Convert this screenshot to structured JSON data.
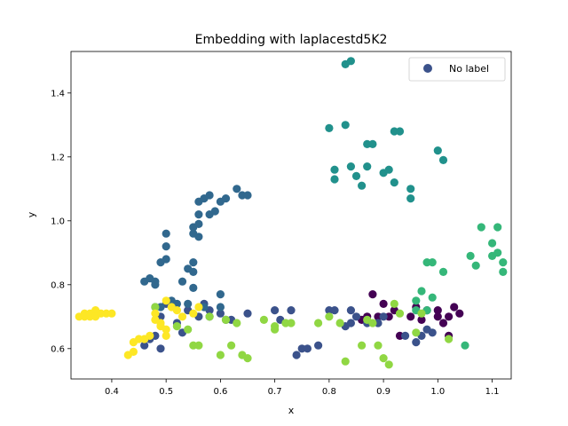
{
  "chart_data": {
    "type": "scatter",
    "title": "Embedding with laplacestd5K2",
    "xlabel": "x",
    "ylabel": "y",
    "xlim": [
      0.325,
      1.135
    ],
    "ylim": [
      0.505,
      1.53
    ],
    "xticks": [
      "0.4",
      "0.5",
      "0.6",
      "0.7",
      "0.8",
      "0.9",
      "1.0",
      "1.1"
    ],
    "yticks": [
      "0.6",
      "0.8",
      "1.0",
      "1.2",
      "1.4"
    ],
    "grid": false,
    "legend": {
      "label": "No label",
      "placement": "top-right",
      "marker_color": "#3b528b"
    },
    "palette": [
      "#440154",
      "#3b528b",
      "#31688e",
      "#21918c",
      "#35b779",
      "#90d743",
      "#fde725"
    ],
    "series": [
      {
        "color_index": 0,
        "points": [
          [
            0.86,
            0.69
          ],
          [
            0.87,
            0.7
          ],
          [
            0.88,
            0.77
          ],
          [
            0.89,
            0.7
          ],
          [
            0.9,
            0.74
          ],
          [
            0.91,
            0.7
          ],
          [
            0.92,
            0.72
          ],
          [
            0.93,
            0.64
          ],
          [
            0.95,
            0.7
          ],
          [
            0.96,
            0.73
          ],
          [
            0.97,
            0.69
          ],
          [
            0.98,
            0.72
          ],
          [
            1.0,
            0.72
          ],
          [
            1.0,
            0.7
          ],
          [
            1.01,
            0.68
          ],
          [
            1.02,
            0.7
          ],
          [
            1.02,
            0.64
          ],
          [
            1.03,
            0.73
          ],
          [
            1.04,
            0.71
          ]
        ]
      },
      {
        "color_index": 1,
        "points": [
          [
            0.46,
            0.61
          ],
          [
            0.48,
            0.64
          ],
          [
            0.49,
            0.7
          ],
          [
            0.49,
            0.6
          ],
          [
            0.53,
            0.65
          ],
          [
            0.54,
            0.72
          ],
          [
            0.56,
            0.7
          ],
          [
            0.57,
            0.74
          ],
          [
            0.58,
            0.72
          ],
          [
            0.6,
            0.71
          ],
          [
            0.62,
            0.69
          ],
          [
            0.65,
            0.71
          ],
          [
            0.7,
            0.72
          ],
          [
            0.71,
            0.69
          ],
          [
            0.73,
            0.72
          ],
          [
            0.74,
            0.58
          ],
          [
            0.75,
            0.6
          ],
          [
            0.76,
            0.6
          ],
          [
            0.78,
            0.61
          ],
          [
            0.8,
            0.72
          ],
          [
            0.81,
            0.72
          ],
          [
            0.83,
            0.67
          ],
          [
            0.84,
            0.72
          ],
          [
            0.84,
            0.68
          ],
          [
            0.85,
            0.7
          ],
          [
            0.87,
            0.68
          ],
          [
            0.89,
            0.68
          ],
          [
            0.9,
            0.7
          ],
          [
            0.94,
            0.64
          ],
          [
            0.96,
            0.62
          ],
          [
            0.97,
            0.64
          ],
          [
            0.98,
            0.66
          ],
          [
            0.99,
            0.65
          ],
          [
            0.47,
            0.63
          ],
          [
            0.5,
            0.74
          ],
          [
            0.52,
            0.68
          ],
          [
            0.58,
            0.7
          ],
          [
            0.61,
            0.69
          ]
        ]
      },
      {
        "color_index": 2,
        "points": [
          [
            0.46,
            0.81
          ],
          [
            0.47,
            0.82
          ],
          [
            0.48,
            0.81
          ],
          [
            0.48,
            0.8
          ],
          [
            0.49,
            0.73
          ],
          [
            0.49,
            0.87
          ],
          [
            0.5,
            0.88
          ],
          [
            0.5,
            0.92
          ],
          [
            0.5,
            0.96
          ],
          [
            0.51,
            0.75
          ],
          [
            0.53,
            0.81
          ],
          [
            0.54,
            0.85
          ],
          [
            0.54,
            0.74
          ],
          [
            0.55,
            0.84
          ],
          [
            0.55,
            0.87
          ],
          [
            0.55,
            0.79
          ],
          [
            0.55,
            0.96
          ],
          [
            0.55,
            0.98
          ],
          [
            0.56,
            0.99
          ],
          [
            0.56,
            1.02
          ],
          [
            0.56,
            0.95
          ],
          [
            0.56,
            1.06
          ],
          [
            0.57,
            1.07
          ],
          [
            0.57,
            0.73
          ],
          [
            0.58,
            1.02
          ],
          [
            0.58,
            1.08
          ],
          [
            0.59,
            1.03
          ],
          [
            0.6,
            0.77
          ],
          [
            0.6,
            1.06
          ],
          [
            0.61,
            1.07
          ],
          [
            0.63,
            1.1
          ],
          [
            0.64,
            1.08
          ],
          [
            0.65,
            1.08
          ],
          [
            0.6,
            0.73
          ],
          [
            0.48,
            0.73
          ],
          [
            0.52,
            0.74
          ]
        ]
      },
      {
        "color_index": 3,
        "points": [
          [
            0.8,
            1.29
          ],
          [
            0.81,
            1.16
          ],
          [
            0.81,
            1.13
          ],
          [
            0.83,
            1.49
          ],
          [
            0.84,
            1.5
          ],
          [
            0.83,
            1.3
          ],
          [
            0.84,
            1.17
          ],
          [
            0.85,
            1.14
          ],
          [
            0.86,
            1.11
          ],
          [
            0.87,
            1.24
          ],
          [
            0.87,
            1.17
          ],
          [
            0.88,
            1.24
          ],
          [
            0.9,
            1.15
          ],
          [
            0.91,
            1.16
          ],
          [
            0.92,
            1.28
          ],
          [
            0.92,
            1.12
          ],
          [
            0.93,
            1.28
          ],
          [
            0.95,
            1.1
          ],
          [
            0.95,
            1.07
          ],
          [
            1.0,
            1.22
          ],
          [
            1.01,
            1.19
          ]
        ]
      },
      {
        "color_index": 4,
        "points": [
          [
            0.96,
            0.75
          ],
          [
            0.97,
            0.78
          ],
          [
            0.98,
            0.87
          ],
          [
            0.99,
            0.87
          ],
          [
            0.99,
            0.76
          ],
          [
            1.01,
            0.84
          ],
          [
            1.06,
            0.89
          ],
          [
            1.07,
            0.86
          ],
          [
            1.08,
            0.98
          ],
          [
            1.1,
            0.93
          ],
          [
            1.1,
            0.89
          ],
          [
            1.11,
            0.98
          ],
          [
            1.11,
            0.9
          ],
          [
            1.12,
            0.87
          ],
          [
            1.12,
            0.84
          ],
          [
            1.05,
            0.61
          ],
          [
            0.98,
            0.72
          ],
          [
            0.96,
            0.72
          ]
        ]
      },
      {
        "color_index": 5,
        "points": [
          [
            0.48,
            0.73
          ],
          [
            0.52,
            0.67
          ],
          [
            0.55,
            0.61
          ],
          [
            0.56,
            0.61
          ],
          [
            0.58,
            0.7
          ],
          [
            0.6,
            0.58
          ],
          [
            0.61,
            0.69
          ],
          [
            0.62,
            0.61
          ],
          [
            0.63,
            0.68
          ],
          [
            0.64,
            0.58
          ],
          [
            0.65,
            0.57
          ],
          [
            0.68,
            0.69
          ],
          [
            0.7,
            0.66
          ],
          [
            0.7,
            0.67
          ],
          [
            0.72,
            0.68
          ],
          [
            0.73,
            0.68
          ],
          [
            0.78,
            0.68
          ],
          [
            0.8,
            0.7
          ],
          [
            0.82,
            0.68
          ],
          [
            0.83,
            0.56
          ],
          [
            0.86,
            0.61
          ],
          [
            0.87,
            0.69
          ],
          [
            0.88,
            0.68
          ],
          [
            0.89,
            0.61
          ],
          [
            0.9,
            0.57
          ],
          [
            0.91,
            0.55
          ],
          [
            0.93,
            0.71
          ],
          [
            0.96,
            0.65
          ],
          [
            0.97,
            0.71
          ],
          [
            1.02,
            0.63
          ],
          [
            0.92,
            0.74
          ],
          [
            0.54,
            0.66
          ]
        ]
      },
      {
        "color_index": 6,
        "points": [
          [
            0.34,
            0.7
          ],
          [
            0.35,
            0.71
          ],
          [
            0.35,
            0.7
          ],
          [
            0.36,
            0.7
          ],
          [
            0.36,
            0.71
          ],
          [
            0.37,
            0.72
          ],
          [
            0.37,
            0.7
          ],
          [
            0.38,
            0.71
          ],
          [
            0.39,
            0.71
          ],
          [
            0.4,
            0.71
          ],
          [
            0.43,
            0.58
          ],
          [
            0.44,
            0.59
          ],
          [
            0.44,
            0.62
          ],
          [
            0.45,
            0.63
          ],
          [
            0.46,
            0.63
          ],
          [
            0.47,
            0.64
          ],
          [
            0.48,
            0.71
          ],
          [
            0.48,
            0.69
          ],
          [
            0.49,
            0.68
          ],
          [
            0.49,
            0.67
          ],
          [
            0.5,
            0.66
          ],
          [
            0.5,
            0.64
          ],
          [
            0.5,
            0.75
          ],
          [
            0.51,
            0.73
          ],
          [
            0.52,
            0.72
          ],
          [
            0.53,
            0.7
          ],
          [
            0.55,
            0.71
          ],
          [
            0.56,
            0.73
          ]
        ]
      }
    ]
  }
}
